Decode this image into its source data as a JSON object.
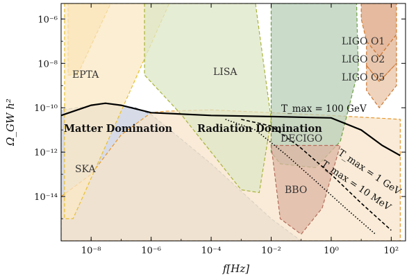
{
  "chart_data": {
    "type": "line",
    "xlabel": "f[Hz]",
    "ylabel": "Ω_GW h²",
    "x_scale": "log",
    "y_scale": "log",
    "xlim": [
      1e-09,
      300
    ],
    "ylim": [
      1e-16,
      5e-06
    ],
    "x_ticks": [
      {
        "value": 1e-08,
        "label": "10⁻⁸"
      },
      {
        "value": 1e-06,
        "label": "10⁻⁶"
      },
      {
        "value": 0.0001,
        "label": "10⁻⁴"
      },
      {
        "value": 0.01,
        "label": "10⁻²"
      },
      {
        "value": 1,
        "label": "10⁰"
      },
      {
        "value": 100,
        "label": "10²"
      }
    ],
    "y_ticks": [
      {
        "value": 1e-06,
        "label": "10⁻⁶"
      },
      {
        "value": 1e-08,
        "label": "10⁻⁸"
      },
      {
        "value": 1e-10,
        "label": "10⁻¹⁰"
      },
      {
        "value": 1e-12,
        "label": "10⁻¹²"
      },
      {
        "value": 1e-14,
        "label": "10⁻¹⁴"
      }
    ],
    "regions": [
      {
        "label": "EPTA",
        "fill": "#f9dca0",
        "stroke": "#e3a915",
        "points": [
          [
            1.7e-09,
            5e-06
          ],
          [
            4.5e-08,
            5e-06
          ],
          [
            3.5e-09,
            3e-09
          ],
          [
            1.7e-09,
            3e-09
          ]
        ]
      },
      {
        "label": "SKA",
        "fill": "#fbe8c4",
        "stroke": "#e8c030",
        "points": [
          [
            1.3e-09,
            5e-06
          ],
          [
            4e-06,
            5e-06
          ],
          [
            2.5e-09,
            1e-15
          ],
          [
            1.3e-09,
            1e-15
          ]
        ]
      },
      {
        "label": "LISA",
        "fill": "#dde7c7",
        "stroke": "#a8b238",
        "points": [
          [
            6e-07,
            5e-06
          ],
          [
            0.003,
            5e-06
          ],
          [
            0.01,
            3e-11
          ],
          [
            0.004,
            1.5e-14
          ],
          [
            0.001,
            2e-14
          ],
          [
            0.0001,
            1e-12
          ],
          [
            1e-05,
            5e-11
          ],
          [
            6e-07,
            3e-09
          ]
        ]
      },
      {
        "label": "DECIGO",
        "fill": "#b8cfb8",
        "stroke": "#6ea040",
        "points": [
          [
            0.01,
            5e-06
          ],
          [
            7,
            5e-06
          ],
          [
            8,
            5e-09
          ],
          [
            2,
            3e-12
          ],
          [
            0.3,
            2e-13
          ],
          [
            0.02,
            3e-13
          ],
          [
            0.01,
            1e-12
          ]
        ]
      },
      {
        "label": "BBO",
        "fill": "#dcb6a3",
        "stroke": "#b66b5a",
        "points": [
          [
            0.01,
            2e-12
          ],
          [
            0.02,
            1e-15
          ],
          [
            0.1,
            2e-16
          ],
          [
            0.5,
            3e-15
          ],
          [
            2,
            2e-12
          ]
        ]
      },
      {
        "label": "LIGO O1",
        "fill": "#dca37d",
        "stroke": "#d67a2a",
        "points": [
          [
            10,
            5e-06
          ],
          [
            150,
            5e-06
          ],
          [
            150,
            2e-07
          ],
          [
            40,
            2e-08
          ],
          [
            15,
            1e-07
          ],
          [
            10,
            1e-06
          ]
        ]
      },
      {
        "label": "LIGO O2",
        "fill": "#e2b493",
        "stroke": "#cc7733",
        "points": [
          [
            15,
            1e-07
          ],
          [
            40,
            2e-08
          ],
          [
            150,
            2e-07
          ],
          [
            150,
            1e-08
          ],
          [
            40,
            1.5e-09
          ],
          [
            15,
            8e-09
          ]
        ]
      },
      {
        "label": "LIGO O5",
        "fill": "#e9c4a6",
        "stroke": "#cc7733",
        "points": [
          [
            15,
            8e-09
          ],
          [
            40,
            1.5e-09
          ],
          [
            150,
            1e-08
          ],
          [
            150,
            1e-09
          ],
          [
            40,
            1e-10
          ],
          [
            15,
            6e-10
          ]
        ]
      }
    ],
    "era_regions": [
      {
        "label": "Matter Domination",
        "fill": "#c9cfe0",
        "stroke": "#8e9ab5",
        "points": [
          [
            1e-09,
            1e-16
          ],
          [
            1e-09,
            8e-11
          ],
          [
            3e-08,
            1.5e-10
          ],
          [
            3e-07,
            1e-10
          ],
          [
            1e-06,
            5e-11
          ],
          [
            0.0001,
            3e-13
          ],
          [
            0.01,
            1e-15
          ],
          [
            0.1,
            1e-16
          ]
        ]
      },
      {
        "label": "Radiation Domination",
        "fill": "#f7e4c9",
        "stroke": "#e5962c",
        "points": [
          [
            1e-09,
            1e-14
          ],
          [
            1e-08,
            1e-13
          ],
          [
            1e-07,
            6e-12
          ],
          [
            1e-06,
            6e-11
          ],
          [
            3e-06,
            7e-11
          ],
          [
            0.0001,
            8e-11
          ],
          [
            0.01,
            6e-11
          ],
          [
            1,
            4.5e-11
          ],
          [
            200,
            3e-11
          ],
          [
            200,
            1e-16
          ],
          [
            1e-09,
            1e-16
          ]
        ]
      }
    ],
    "series": [
      {
        "name": "T_max = 100 GeV",
        "color": "#000000",
        "style": "solid",
        "x": [
          1e-09,
          1e-08,
          3e-08,
          1e-07,
          1e-06,
          0.0001,
          0.01,
          1,
          10,
          50,
          200
        ],
        "y": [
          4.5e-11,
          1.3e-10,
          1.6e-10,
          1.3e-10,
          6e-11,
          4.5e-11,
          4e-11,
          3.5e-11,
          1e-11,
          2e-12,
          7e-13
        ]
      },
      {
        "name": "T_max = 1 GeV",
        "color": "#000000",
        "style": "dashed",
        "x": [
          0.001,
          0.01,
          0.1,
          1,
          10,
          100
        ],
        "y": [
          3e-11,
          1.5e-11,
          1.5e-12,
          1e-13,
          5e-15,
          3e-16
        ]
      },
      {
        "name": "T_max = 10 MeV",
        "color": "#000000",
        "style": "dotted",
        "x": [
          0.0003,
          0.003,
          0.03,
          0.3,
          3,
          30
        ],
        "y": [
          3e-11,
          1e-11,
          8e-13,
          5e-14,
          3e-15,
          2e-16
        ]
      }
    ],
    "labels": {
      "epta": "EPTA",
      "ska": "SKA",
      "lisa": "LISA",
      "decigo": "DECIGO",
      "bbo": "BBO",
      "ligo_o1": "LIGO O1",
      "ligo_o2": "LIGO O2",
      "ligo_o5": "LIGO O5",
      "matter": "Matter Domination",
      "radiation": "Radiation Domination",
      "tmax_100gev": "T_max = 100 GeV",
      "tmax_1gev": "T_max = 1 GeV",
      "tmax_10mev": "T_max = 10 MeV"
    }
  }
}
